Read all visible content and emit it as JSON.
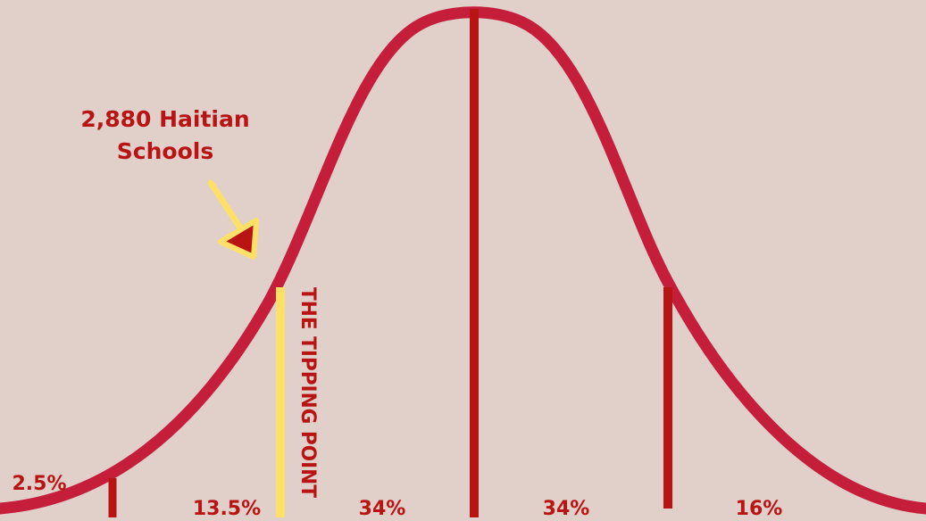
{
  "colors": {
    "background": "#e1cfca",
    "curve": "#c41e3a",
    "divider": "#b81414",
    "highlight": "#ffe066",
    "text": "#b81414"
  },
  "annotation": {
    "line1": "2,880 Haitian",
    "line2": "Schools",
    "pointer": "arrow-icon"
  },
  "tipping_point": {
    "label": "THE TIPPING POINT"
  },
  "segments": [
    {
      "label": "2.5%"
    },
    {
      "label": "13.5%"
    },
    {
      "label": "34%"
    },
    {
      "label": "34%"
    },
    {
      "label": "16%"
    }
  ]
}
